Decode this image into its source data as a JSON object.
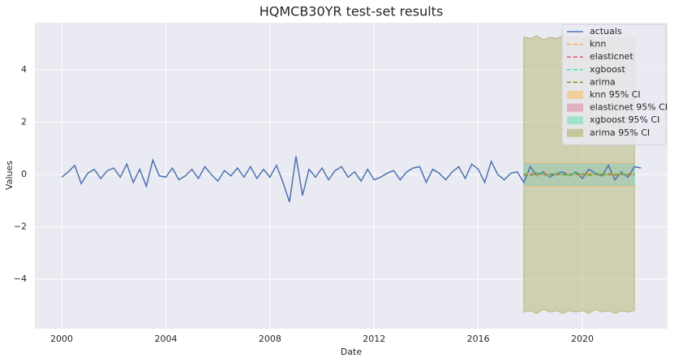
{
  "chart_data": {
    "type": "line",
    "title": "HQMCB30YR test-set results",
    "x_label": "Date",
    "y_label": "Values",
    "xlim": [
      1998.97,
      2023.27
    ],
    "ylim": [
      -5.89,
      5.8
    ],
    "xticks": [
      2000,
      2004,
      2008,
      2012,
      2016,
      2020
    ],
    "yticks": [
      {
        "value": -4,
        "label": "−4"
      },
      {
        "value": -2,
        "label": "−2"
      },
      0,
      2,
      4
    ],
    "grid": true,
    "legend": "upper right",
    "series": [
      {
        "name": "actuals",
        "color": "#4c72b0",
        "dash": false,
        "x": [
          2000,
          2000.25,
          2000.5,
          2000.75,
          2001,
          2001.25,
          2001.5,
          2001.75,
          2002,
          2002.25,
          2002.5,
          2002.75,
          2003,
          2003.25,
          2003.5,
          2003.75,
          2004,
          2004.25,
          2004.5,
          2004.75,
          2005,
          2005.25,
          2005.5,
          2005.75,
          2006,
          2006.25,
          2006.5,
          2006.75,
          2007,
          2007.25,
          2007.5,
          2007.75,
          2008,
          2008.25,
          2008.5,
          2008.75,
          2009,
          2009.25,
          2009.5,
          2009.75,
          2010,
          2010.25,
          2010.5,
          2010.75,
          2011,
          2011.25,
          2011.5,
          2011.75,
          2012,
          2012.25,
          2012.5,
          2012.75,
          2013,
          2013.25,
          2013.5,
          2013.75,
          2014,
          2014.25,
          2014.5,
          2014.75,
          2015,
          2015.25,
          2015.5,
          2015.75,
          2016,
          2016.25,
          2016.5,
          2016.75,
          2017,
          2017.25,
          2017.5,
          2017.75,
          2018,
          2018.25,
          2018.5,
          2018.75,
          2019,
          2019.25,
          2019.5,
          2019.75,
          2020,
          2020.25,
          2020.5,
          2020.75,
          2021,
          2021.25,
          2021.5,
          2021.75,
          2022,
          2022.25
        ],
        "values": [
          -0.1,
          0.1,
          0.35,
          -0.35,
          0.05,
          0.2,
          -0.15,
          0.15,
          0.25,
          -0.1,
          0.4,
          -0.3,
          0.2,
          -0.45,
          0.55,
          -0.05,
          -0.1,
          0.25,
          -0.2,
          -0.05,
          0.2,
          -0.15,
          0.3,
          0.0,
          -0.25,
          0.15,
          -0.05,
          0.25,
          -0.1,
          0.3,
          -0.15,
          0.2,
          -0.1,
          0.35,
          -0.3,
          -1.05,
          0.7,
          -0.8,
          0.2,
          -0.1,
          0.25,
          -0.2,
          0.15,
          0.3,
          -0.1,
          0.1,
          -0.25,
          0.2,
          -0.2,
          -0.1,
          0.05,
          0.15,
          -0.2,
          0.1,
          0.25,
          0.3,
          -0.3,
          0.2,
          0.05,
          -0.2,
          0.1,
          0.3,
          -0.15,
          0.4,
          0.2,
          -0.3,
          0.5,
          0.0,
          -0.2,
          0.05,
          0.1,
          -0.3,
          0.3,
          -0.05,
          0.1,
          -0.1,
          0.05,
          0.1,
          -0.05,
          0.1,
          -0.15,
          0.2,
          0.05,
          -0.05,
          0.35,
          -0.2,
          0.1,
          -0.1,
          0.3,
          0.25
        ]
      },
      {
        "name": "knn",
        "color": "#f0b043",
        "dash": true,
        "x": [
          2017.75,
          2018,
          2018.25,
          2018.5,
          2018.75,
          2019,
          2019.25,
          2019.5,
          2019.75,
          2020,
          2020.25,
          2020.5,
          2020.75,
          2021,
          2021.25,
          2021.5,
          2021.75,
          2022
        ],
        "values": [
          0.02,
          0.05,
          -0.03,
          0.04,
          0.0,
          0.06,
          -0.02,
          0.03,
          0.01,
          -0.04,
          0.05,
          0.0,
          0.03,
          -0.02,
          0.04,
          0.01,
          0.02,
          0.03
        ]
      },
      {
        "name": "elasticnet",
        "color": "#e5566e",
        "dash": true,
        "x": [
          2017.75,
          2018,
          2018.25,
          2018.5,
          2018.75,
          2019,
          2019.25,
          2019.5,
          2019.75,
          2020,
          2020.25,
          2020.5,
          2020.75,
          2021,
          2021.25,
          2021.5,
          2021.75,
          2022
        ],
        "values": [
          -0.02,
          0.0,
          0.03,
          -0.01,
          0.02,
          0.0,
          0.01,
          -0.02,
          0.02,
          0.01,
          -0.01,
          0.03,
          0.0,
          0.01,
          -0.02,
          0.02,
          0.0,
          0.01
        ]
      },
      {
        "name": "xgboost",
        "color": "#3ee3a6",
        "dash": true,
        "x": [
          2017.75,
          2018,
          2018.25,
          2018.5,
          2018.75,
          2019,
          2019.25,
          2019.5,
          2019.75,
          2020,
          2020.25,
          2020.5,
          2020.75,
          2021,
          2021.25,
          2021.5,
          2021.75,
          2022
        ],
        "values": [
          0.05,
          -0.05,
          0.08,
          0.02,
          -0.06,
          0.07,
          0.0,
          -0.04,
          0.06,
          0.02,
          -0.05,
          0.09,
          -0.02,
          0.04,
          -0.03,
          0.06,
          0.01,
          0.0
        ]
      },
      {
        "name": "arima",
        "color": "#8c8c2e",
        "dash": true,
        "x": [
          2017.75,
          2018,
          2018.25,
          2018.5,
          2018.75,
          2019,
          2019.25,
          2019.5,
          2019.75,
          2020,
          2020.25,
          2020.5,
          2020.75,
          2021,
          2021.25,
          2021.5,
          2021.75,
          2022
        ],
        "values": [
          0.0,
          -0.02,
          0.03,
          0.01,
          -0.01,
          0.02,
          0.0,
          -0.01,
          0.01,
          0.02,
          -0.02,
          0.01,
          0.0,
          0.02,
          -0.01,
          0.01,
          0.0,
          0.01
        ]
      }
    ],
    "bands": [
      {
        "name": "knn 95% CI",
        "color": "#f5c57a",
        "x": [
          2017.75,
          2022
        ],
        "lower": [
          -0.45,
          -0.45
        ],
        "upper": [
          0.45,
          0.45
        ]
      },
      {
        "name": "elasticnet 95% CI",
        "color": "#e09aad",
        "x": [
          2017.75,
          2022
        ],
        "lower": [
          -0.42,
          -0.42
        ],
        "upper": [
          0.42,
          0.42
        ]
      },
      {
        "name": "xgboost 95% CI",
        "color": "#7fe3bf",
        "x": [
          2017.75,
          2022
        ],
        "lower": [
          -0.4,
          -0.4
        ],
        "upper": [
          0.4,
          0.4
        ]
      },
      {
        "name": "arima 95% CI",
        "color": "#b8b87e",
        "x": [
          2017.75,
          2018,
          2018.25,
          2018.5,
          2018.75,
          2019,
          2019.25,
          2019.5,
          2019.75,
          2020,
          2020.25,
          2020.5,
          2020.75,
          2021,
          2021.25,
          2021.5,
          2021.75,
          2022
        ],
        "lower": [
          -5.25,
          -5.2,
          -5.3,
          -5.15,
          -5.25,
          -5.2,
          -5.3,
          -5.2,
          -5.25,
          -5.2,
          -5.3,
          -5.15,
          -5.25,
          -5.2,
          -5.3,
          -5.2,
          -5.25,
          -5.2
        ],
        "upper": [
          5.25,
          5.2,
          5.3,
          5.15,
          5.25,
          5.2,
          5.3,
          5.2,
          5.25,
          5.2,
          5.3,
          5.15,
          5.25,
          5.2,
          5.3,
          5.2,
          5.25,
          5.2
        ]
      }
    ]
  }
}
